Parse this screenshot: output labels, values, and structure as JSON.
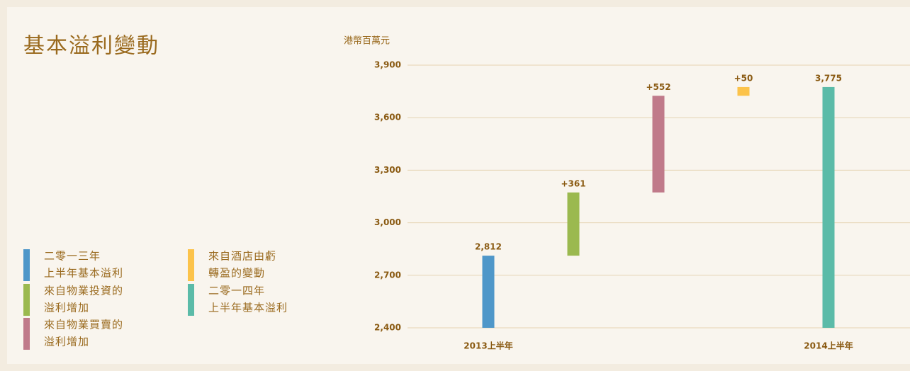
{
  "chart_data": {
    "type": "waterfall",
    "title": "基本溢利變動",
    "y_label": "港幣百萬元",
    "categories": [
      "2013上半年",
      null,
      null,
      null,
      "2014上半年"
    ],
    "values": [
      2812,
      361,
      552,
      50,
      3775
    ],
    "value_labels": [
      "2,812",
      "+361",
      "+552",
      "+50",
      "3,775"
    ],
    "measure": [
      "absolute",
      "relative",
      "relative",
      "relative",
      "total"
    ],
    "colors": [
      "#4f97c9",
      "#9bb94f",
      "#c07a8a",
      "#fcc34a",
      "#5bbba8"
    ],
    "ylim": [
      2400,
      3900
    ],
    "yticks": [
      {
        "value": 2400,
        "label": "2,400"
      },
      {
        "value": 2700,
        "label": "2,700"
      },
      {
        "value": 3000,
        "label": "3,000"
      },
      {
        "value": 3300,
        "label": "3,300"
      },
      {
        "value": 3600,
        "label": "3,600"
      },
      {
        "value": 3900,
        "label": "3,900"
      }
    ],
    "grid": true,
    "legend": [
      {
        "lines": [
          "二零一三年",
          "上半年基本溢利"
        ],
        "color": "#4f97c9"
      },
      {
        "lines": [
          "來自物業投資的",
          "溢利增加"
        ],
        "color": "#9bb94f"
      },
      {
        "lines": [
          "來自物業買賣的",
          "溢利增加"
        ],
        "color": "#c07a8a"
      },
      {
        "lines": [
          "來自酒店由虧",
          "轉盈的變動"
        ],
        "color": "#fcc34a"
      },
      {
        "lines": [
          "二零一四年",
          "上半年基本溢利"
        ],
        "color": "#5bbba8"
      }
    ]
  }
}
